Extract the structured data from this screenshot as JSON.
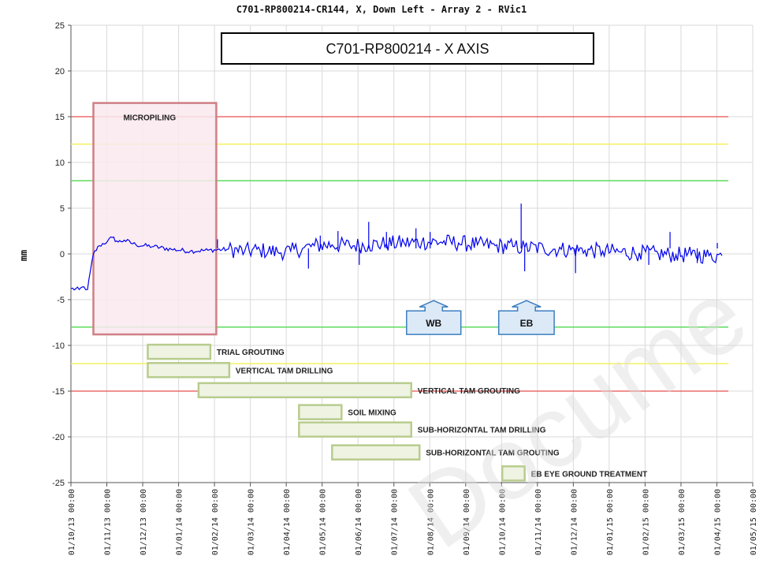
{
  "chart_data": {
    "type": "line",
    "title": "C701-RP800214-CR144, X, Down Left - Array 2 - RVic1",
    "box_title": "C701-RP800214 - X AXIS",
    "ylabel": "mm",
    "xlabel": "",
    "ylim": [
      -25,
      25
    ],
    "yticks": [
      25,
      20,
      15,
      10,
      5,
      0,
      -5,
      -10,
      -15,
      -20,
      -25
    ],
    "xticks": [
      "01/10/13 00:00",
      "01/11/13 00:00",
      "01/12/13 00:00",
      "01/01/14 00:00",
      "01/02/14 00:00",
      "01/03/14 00:00",
      "01/04/14 00:00",
      "01/05/14 00:00",
      "01/06/14 00:00",
      "01/07/14 00:00",
      "01/08/14 00:00",
      "01/09/14 00:00",
      "01/10/14 00:00",
      "01/11/14 00:00",
      "01/12/14 00:00",
      "01/01/15 00:00",
      "01/02/15 00:00",
      "01/03/15 00:00",
      "01/04/15 00:00",
      "01/05/15 00:00"
    ],
    "grid": true,
    "series": [
      {
        "color": "#0000ee",
        "points": [
          [
            "2013-10-01",
            -3.8
          ],
          [
            "2013-10-08",
            -3.9
          ],
          [
            "2013-10-12",
            -3.6
          ],
          [
            "2013-10-15",
            -3.9
          ],
          [
            "2013-10-20",
            0.0
          ],
          [
            "2013-10-25",
            0.9
          ],
          [
            "2013-11-01",
            1.4
          ],
          [
            "2013-11-05",
            1.8
          ],
          [
            "2013-11-10",
            1.3
          ],
          [
            "2013-11-15",
            1.5
          ],
          [
            "2013-11-25",
            1.0
          ],
          [
            "2013-12-10",
            0.8
          ],
          [
            "2013-12-25",
            0.5
          ],
          [
            "2014-01-10",
            0.3
          ],
          [
            "2014-01-25",
            0.4
          ],
          [
            "2014-02-10",
            0.5
          ],
          [
            "2014-02-25",
            0.3
          ],
          [
            "2014-03-10",
            0.4
          ],
          [
            "2014-03-25",
            0.2
          ],
          [
            "2014-04-05",
            0.3
          ],
          [
            "2014-04-15",
            0.6
          ],
          [
            "2014-04-25",
            0.9
          ],
          [
            "2014-05-10",
            1.0
          ],
          [
            "2014-05-25",
            0.9
          ],
          [
            "2014-06-10",
            1.0
          ],
          [
            "2014-06-25",
            1.1
          ],
          [
            "2014-07-10",
            1.2
          ],
          [
            "2014-07-25",
            1.3
          ],
          [
            "2014-08-10",
            1.3
          ],
          [
            "2014-08-25",
            1.2
          ],
          [
            "2014-09-10",
            1.0
          ],
          [
            "2014-09-25",
            0.9
          ],
          [
            "2014-10-10",
            0.8
          ],
          [
            "2014-10-20",
            0.7
          ],
          [
            "2014-11-05",
            0.6
          ],
          [
            "2014-11-20",
            0.5
          ],
          [
            "2014-12-10",
            0.4
          ],
          [
            "2014-12-25",
            0.3
          ],
          [
            "2015-01-10",
            0.2
          ],
          [
            "2015-01-25",
            0.1
          ],
          [
            "2015-02-10",
            0.0
          ],
          [
            "2015-02-25",
            -0.1
          ],
          [
            "2015-03-10",
            -0.1
          ],
          [
            "2015-03-25",
            -0.2
          ],
          [
            "2015-04-05",
            -0.2
          ]
        ]
      }
    ],
    "spikes": [
      [
        "2014-02-02",
        1.6
      ],
      [
        "2014-04-20",
        -1.6
      ],
      [
        "2014-04-30",
        2.0
      ],
      [
        "2014-05-15",
        2.5
      ],
      [
        "2014-06-02",
        -1.2
      ],
      [
        "2014-06-10",
        3.5
      ],
      [
        "2014-06-25",
        2.4
      ],
      [
        "2014-07-20",
        2.8
      ],
      [
        "2014-08-01",
        2.4
      ],
      [
        "2014-10-17",
        5.5
      ],
      [
        "2014-10-20",
        -1.9
      ],
      [
        "2014-12-02",
        -2.1
      ],
      [
        "2015-02-02",
        -1.2
      ],
      [
        "2015-02-20",
        2.4
      ],
      [
        "2015-03-15",
        -1.0
      ],
      [
        "2015-04-01",
        1.2
      ]
    ],
    "limits": [
      {
        "value": 15,
        "color": "#e8504f"
      },
      {
        "value": 12,
        "color": "#f4f052"
      },
      {
        "value": 8,
        "color": "#4fd84f"
      },
      {
        "value": -8,
        "color": "#4fd84f"
      },
      {
        "value": -12,
        "color": "#f4f052"
      },
      {
        "value": -15,
        "color": "#e8504f"
      }
    ],
    "micropiling": {
      "label": "MICROPILING",
      "start": "2013-10-20",
      "end": "2014-02-01",
      "ymin": -8.8,
      "ymax": 16.5
    },
    "activities": [
      {
        "label": "TRIAL GROUTING",
        "start": "2013-12-05",
        "end": "2014-01-27",
        "y_center": -10.7
      },
      {
        "label": "VERTICAL TAM DRILLING",
        "start": "2013-12-05",
        "end": "2014-02-12",
        "y_center": -12.7
      },
      {
        "label": "VERTICAL TAM GROUTING",
        "start": "2014-01-17",
        "end": "2014-07-16",
        "y_center": -14.9
      },
      {
        "label": "SOIL MIXING",
        "start": "2014-04-12",
        "end": "2014-05-18",
        "y_center": -17.3
      },
      {
        "label": "SUB-HORIZONTAL TAM DRILLING",
        "start": "2014-04-12",
        "end": "2014-07-16",
        "y_center": -19.2
      },
      {
        "label": "SUB-HORIZONTAL TAM GROUTING",
        "start": "2014-05-10",
        "end": "2014-07-23",
        "y_center": -21.7
      },
      {
        "label": "EB EYE GROUND TREATMENT",
        "start": "2014-10-01",
        "end": "2014-10-20",
        "y_center": -24.0
      }
    ],
    "arrows": [
      {
        "label": "WB",
        "start": "2014-07-12",
        "end": "2014-08-27",
        "y_top": -5.1,
        "y_bottom": -8.8
      },
      {
        "label": "EB",
        "start": "2014-09-28",
        "end": "2014-11-14",
        "y_top": -5.1,
        "y_bottom": -8.8
      }
    ]
  },
  "watermark": "Docume"
}
